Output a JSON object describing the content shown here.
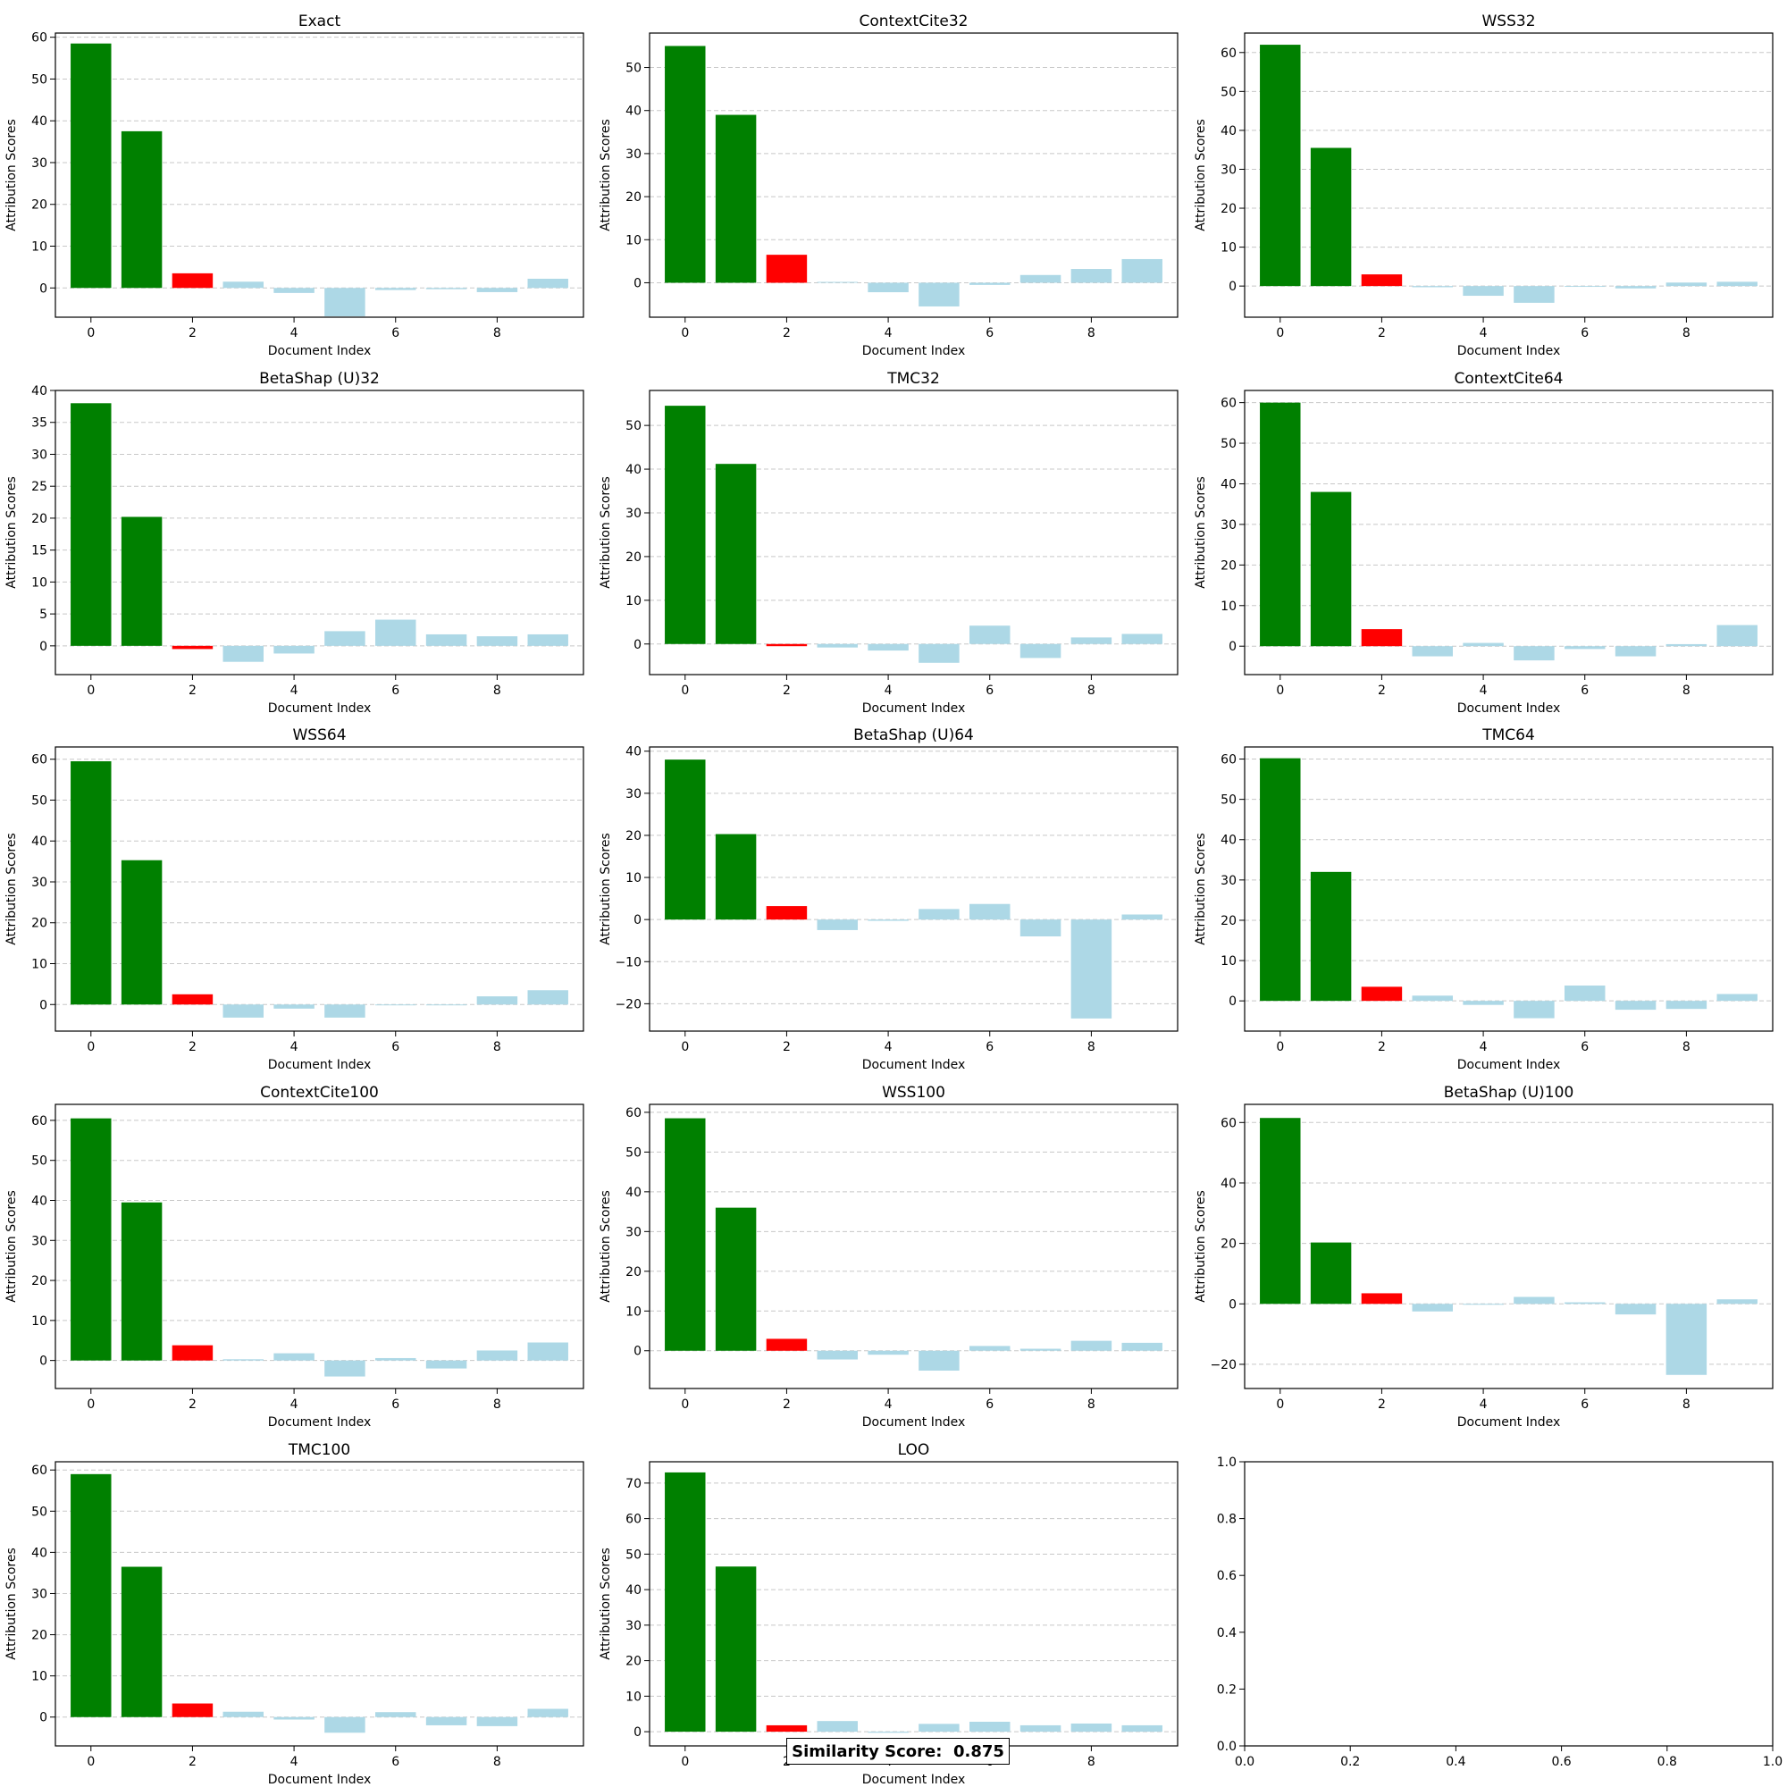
{
  "colors": {
    "top_documents": "#008000",
    "third_document": "#ff0000",
    "other_documents": "#add8e6",
    "grid": "#c8c8c8",
    "axis": "#000000"
  },
  "similarity_score": {
    "label": "Similarity Score:  0.875"
  },
  "chart_data": [
    {
      "type": "bar",
      "title": "Exact",
      "xlabel": "Document Index",
      "ylabel": "Attribution Scores",
      "x": [
        0,
        1,
        2,
        3,
        4,
        5,
        6,
        7,
        8,
        9
      ],
      "values": [
        58.5,
        37.5,
        3.5,
        1.5,
        -1.2,
        -6.8,
        -0.5,
        -0.3,
        -1.0,
        2.2
      ],
      "ylim": [
        -7,
        61
      ],
      "yticks": [
        0,
        10,
        20,
        30,
        40,
        50,
        60
      ],
      "xticks": [
        0,
        2,
        4,
        6,
        8
      ],
      "grid": "y"
    },
    {
      "type": "bar",
      "title": "ContextCite32",
      "xlabel": "Document Index",
      "ylabel": "Attribution Scores",
      "x": [
        0,
        1,
        2,
        3,
        4,
        5,
        6,
        7,
        8,
        9
      ],
      "values": [
        55.0,
        39.0,
        6.5,
        0.2,
        -2.2,
        -5.5,
        -0.5,
        1.8,
        3.2,
        5.5
      ],
      "ylim": [
        -8,
        58
      ],
      "yticks": [
        0,
        10,
        20,
        30,
        40,
        50
      ],
      "xticks": [
        0,
        2,
        4,
        6,
        8
      ],
      "grid": "y"
    },
    {
      "type": "bar",
      "title": "WSS32",
      "xlabel": "Document Index",
      "ylabel": "Attribution Scores",
      "x": [
        0,
        1,
        2,
        3,
        4,
        5,
        6,
        7,
        8,
        9
      ],
      "values": [
        62.0,
        35.5,
        3.0,
        -0.3,
        -2.5,
        -4.3,
        -0.2,
        -0.6,
        0.9,
        1.1
      ],
      "ylim": [
        -8,
        65
      ],
      "yticks": [
        0,
        10,
        20,
        30,
        40,
        50,
        60
      ],
      "xticks": [
        0,
        2,
        4,
        6,
        8
      ],
      "grid": "y"
    },
    {
      "type": "bar",
      "title": "BetaShap (U)32",
      "xlabel": "Document Index",
      "ylabel": "Attribution Scores",
      "x": [
        0,
        1,
        2,
        3,
        4,
        5,
        6,
        7,
        8,
        9
      ],
      "values": [
        38.0,
        20.2,
        -0.5,
        -2.5,
        -1.2,
        2.3,
        4.1,
        1.8,
        1.5,
        1.8
      ],
      "ylim": [
        -4.5,
        40
      ],
      "yticks": [
        0,
        5,
        10,
        15,
        20,
        25,
        30,
        35,
        40
      ],
      "xticks": [
        0,
        2,
        4,
        6,
        8
      ],
      "grid": "y"
    },
    {
      "type": "bar",
      "title": "TMC32",
      "xlabel": "Document Index",
      "ylabel": "Attribution Scores",
      "x": [
        0,
        1,
        2,
        3,
        4,
        5,
        6,
        7,
        8,
        9
      ],
      "values": [
        54.5,
        41.2,
        -0.5,
        -0.8,
        -1.5,
        -4.3,
        4.2,
        -3.2,
        1.5,
        2.3
      ],
      "ylim": [
        -7,
        58
      ],
      "yticks": [
        0,
        10,
        20,
        30,
        40,
        50
      ],
      "xticks": [
        0,
        2,
        4,
        6,
        8
      ],
      "grid": "y"
    },
    {
      "type": "bar",
      "title": "ContextCite64",
      "xlabel": "Document Index",
      "ylabel": "Attribution Scores",
      "x": [
        0,
        1,
        2,
        3,
        4,
        5,
        6,
        7,
        8,
        9
      ],
      "values": [
        60.0,
        38.0,
        4.2,
        -2.5,
        0.8,
        -3.5,
        -0.7,
        -2.5,
        0.5,
        5.2
      ],
      "ylim": [
        -7,
        63
      ],
      "yticks": [
        0,
        10,
        20,
        30,
        40,
        50,
        60
      ],
      "xticks": [
        0,
        2,
        4,
        6,
        8
      ],
      "grid": "y"
    },
    {
      "type": "bar",
      "title": "WSS64",
      "xlabel": "Document Index",
      "ylabel": "Attribution Scores",
      "x": [
        0,
        1,
        2,
        3,
        4,
        5,
        6,
        7,
        8,
        9
      ],
      "values": [
        59.5,
        35.3,
        2.5,
        -3.2,
        -1.0,
        -3.2,
        -0.2,
        -0.2,
        2.0,
        3.5
      ],
      "ylim": [
        -6.5,
        63
      ],
      "yticks": [
        0,
        10,
        20,
        30,
        40,
        50,
        60
      ],
      "xticks": [
        0,
        2,
        4,
        6,
        8
      ],
      "grid": "y"
    },
    {
      "type": "bar",
      "title": "BetaShap (U)64",
      "xlabel": "Document Index",
      "ylabel": "Attribution Scores",
      "x": [
        0,
        1,
        2,
        3,
        4,
        5,
        6,
        7,
        8,
        9
      ],
      "values": [
        38.0,
        20.3,
        3.2,
        -2.5,
        -0.3,
        2.5,
        3.7,
        -4.0,
        -23.5,
        1.2
      ],
      "ylim": [
        -26.5,
        41
      ],
      "yticks": [
        -20,
        -10,
        0,
        10,
        20,
        30,
        40
      ],
      "xticks": [
        0,
        2,
        4,
        6,
        8
      ],
      "grid": "y"
    },
    {
      "type": "bar",
      "title": "TMC64",
      "xlabel": "Document Index",
      "ylabel": "Attribution Scores",
      "x": [
        0,
        1,
        2,
        3,
        4,
        5,
        6,
        7,
        8,
        9
      ],
      "values": [
        60.2,
        32.0,
        3.5,
        1.3,
        -1.0,
        -4.3,
        3.8,
        -2.2,
        -2.0,
        1.7
      ],
      "ylim": [
        -7.5,
        63
      ],
      "yticks": [
        0,
        10,
        20,
        30,
        40,
        50,
        60
      ],
      "xticks": [
        0,
        2,
        4,
        6,
        8
      ],
      "grid": "y"
    },
    {
      "type": "bar",
      "title": "ContextCite100",
      "xlabel": "Document Index",
      "ylabel": "Attribution Scores",
      "x": [
        0,
        1,
        2,
        3,
        4,
        5,
        6,
        7,
        8,
        9
      ],
      "values": [
        60.5,
        39.5,
        3.8,
        0.3,
        1.8,
        -4.0,
        0.6,
        -2.0,
        2.5,
        4.5
      ],
      "ylim": [
        -7,
        64
      ],
      "yticks": [
        0,
        10,
        20,
        30,
        40,
        50,
        60
      ],
      "xticks": [
        0,
        2,
        4,
        6,
        8
      ],
      "grid": "y"
    },
    {
      "type": "bar",
      "title": "WSS100",
      "xlabel": "Document Index",
      "ylabel": "Attribution Scores",
      "x": [
        0,
        1,
        2,
        3,
        4,
        5,
        6,
        7,
        8,
        9
      ],
      "values": [
        58.5,
        36.0,
        3.0,
        -2.2,
        -1.0,
        -5.0,
        1.2,
        0.5,
        2.5,
        2.0
      ],
      "ylim": [
        -9.5,
        62
      ],
      "yticks": [
        0,
        10,
        20,
        30,
        40,
        50,
        60
      ],
      "xticks": [
        0,
        2,
        4,
        6,
        8
      ],
      "grid": "y"
    },
    {
      "type": "bar",
      "title": "BetaShap (U)100",
      "xlabel": "Document Index",
      "ylabel": "Attribution Scores",
      "x": [
        0,
        1,
        2,
        3,
        4,
        5,
        6,
        7,
        8,
        9
      ],
      "values": [
        61.5,
        20.3,
        3.5,
        -2.5,
        -0.3,
        2.3,
        0.5,
        -3.5,
        -23.5,
        1.5
      ],
      "ylim": [
        -28,
        66
      ],
      "yticks": [
        -20,
        0,
        20,
        40,
        60
      ],
      "xticks": [
        0,
        2,
        4,
        6,
        8
      ],
      "grid": "y"
    },
    {
      "type": "bar",
      "title": "TMC100",
      "xlabel": "Document Index",
      "ylabel": "Attribution Scores",
      "x": [
        0,
        1,
        2,
        3,
        4,
        5,
        6,
        7,
        8,
        9
      ],
      "values": [
        59.0,
        36.5,
        3.3,
        1.3,
        -0.6,
        -3.8,
        1.2,
        -2.0,
        -2.2,
        2.0
      ],
      "ylim": [
        -7,
        62
      ],
      "yticks": [
        0,
        10,
        20,
        30,
        40,
        50,
        60
      ],
      "xticks": [
        0,
        2,
        4,
        6,
        8
      ],
      "grid": "y"
    },
    {
      "type": "bar",
      "title": "LOO",
      "xlabel": "Document Index",
      "ylabel": "Attribution Scores",
      "x": [
        0,
        1,
        2,
        3,
        4,
        5,
        6,
        7,
        8,
        9
      ],
      "values": [
        73.0,
        46.5,
        1.8,
        3.0,
        -0.3,
        2.2,
        2.8,
        1.8,
        2.3,
        1.8
      ],
      "ylim": [
        -4,
        76
      ],
      "yticks": [
        0,
        10,
        20,
        30,
        40,
        50,
        60,
        70
      ],
      "xticks": [
        0,
        2,
        4,
        6,
        8
      ],
      "grid": "y"
    },
    {
      "type": "bar",
      "title": "",
      "xlabel": "",
      "ylabel": "",
      "x": [],
      "values": [],
      "ylim": [
        0,
        1
      ],
      "xlim": [
        0,
        1
      ],
      "yticks": [
        "0.0",
        "0.2",
        "0.4",
        "0.6",
        "0.8",
        "1.0"
      ],
      "xticks": [
        "0.0",
        "0.2",
        "0.4",
        "0.6",
        "0.8",
        "1.0"
      ],
      "grid": "none",
      "empty": true
    }
  ]
}
